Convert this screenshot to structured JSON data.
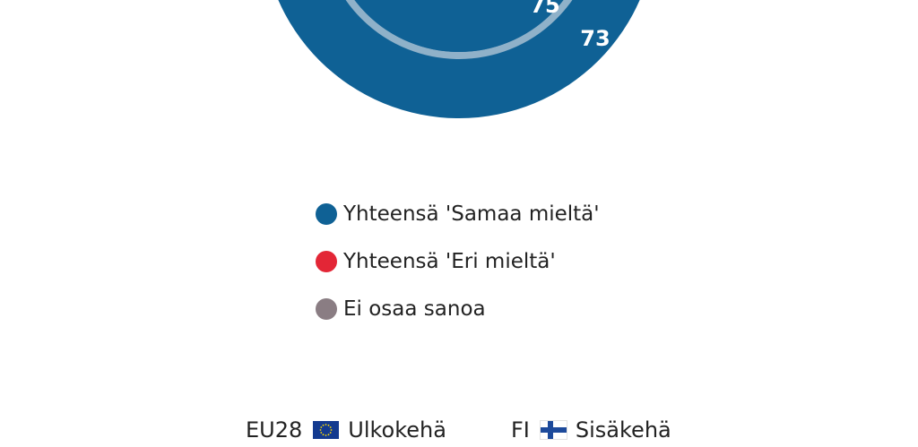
{
  "chart_data": {
    "type": "pie",
    "variant": "nested-donut",
    "series": [
      {
        "name": "Ulkokehä",
        "code": "EU28",
        "ring": "outer",
        "values": [
          {
            "label": "Yhteensä 'Samaa mieltä'",
            "value": 73
          }
        ]
      },
      {
        "name": "Sisäkehä",
        "code": "FI",
        "ring": "inner",
        "values": [
          {
            "label": "Yhteensä 'Samaa mieltä'",
            "value": 75
          }
        ]
      }
    ],
    "legend": {
      "placement": "bottom",
      "items": [
        {
          "label": "Yhteensä 'Samaa mieltä'",
          "color": "#0f6195"
        },
        {
          "label": "Yhteensä 'Eri mieltä'",
          "color": "#e32636"
        },
        {
          "label": "Ei osaa sanoa",
          "color": "#8a7d83"
        }
      ]
    },
    "colors": {
      "outer_ring": "#0f6195",
      "inner_ring": "#8fb1c9",
      "data_label": "#ffffff"
    }
  },
  "ring_key": [
    {
      "code": "EU28",
      "flag": "eu-flag-icon",
      "name": "Ulkokehä"
    },
    {
      "code": "FI",
      "flag": "fi-flag-icon",
      "name": "Sisäkehä"
    }
  ]
}
